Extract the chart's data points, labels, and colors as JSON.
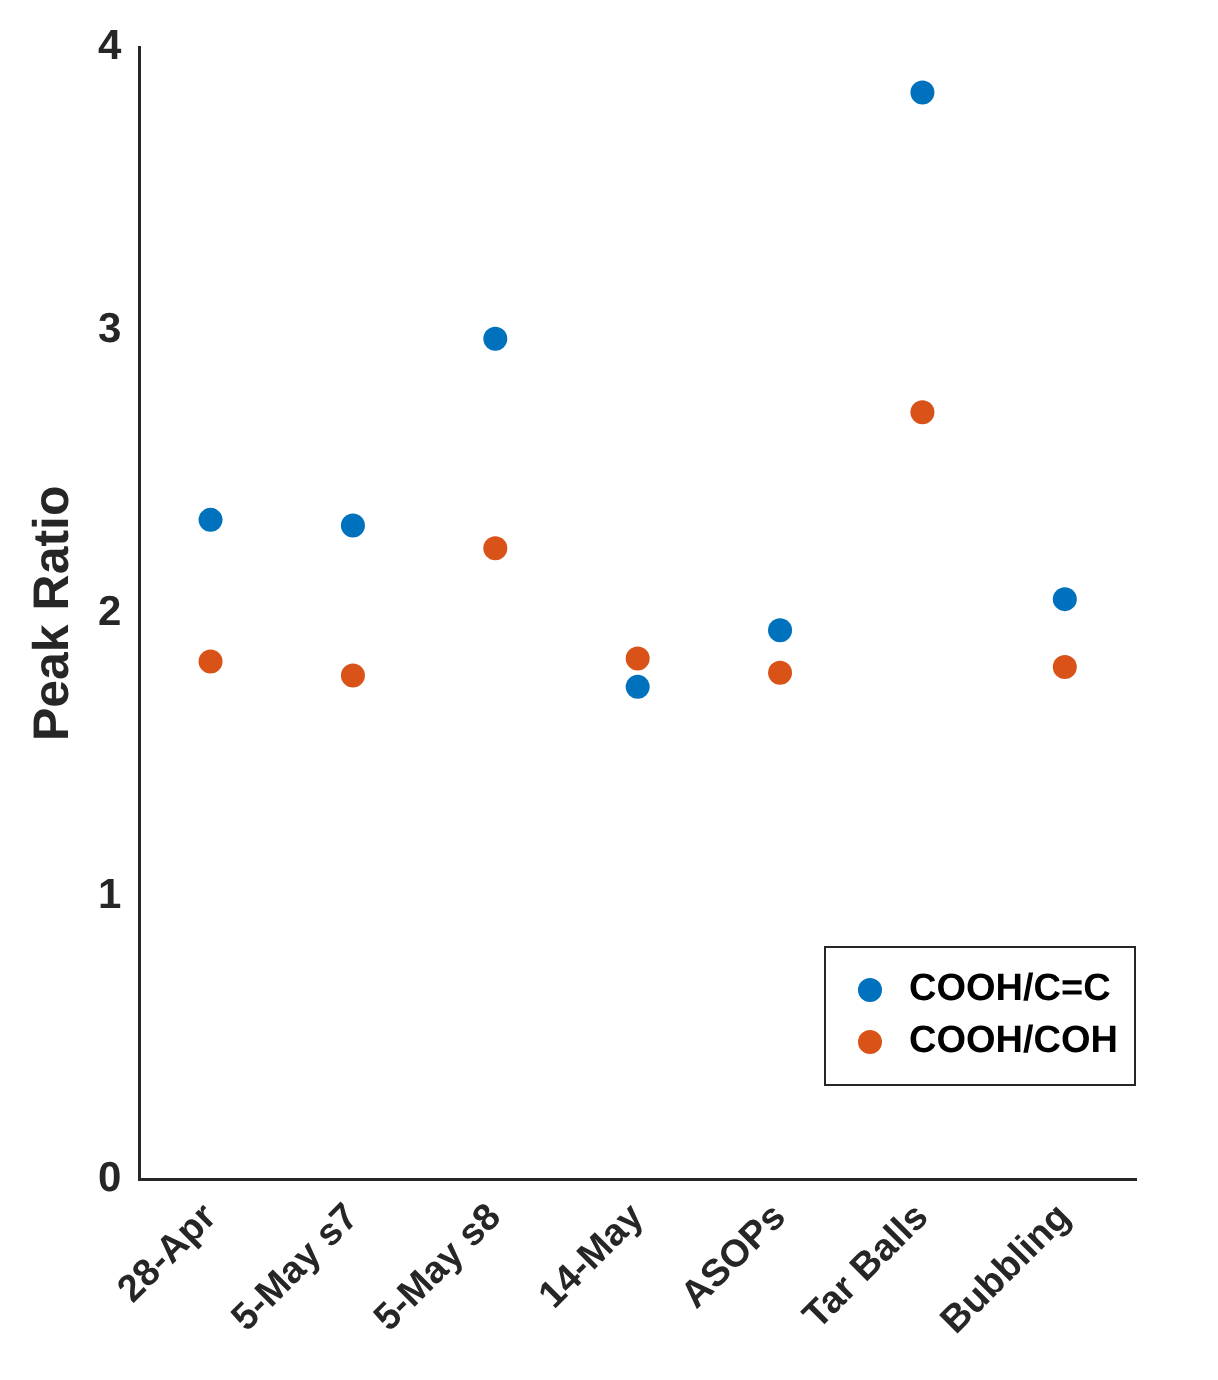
{
  "chart_data": {
    "type": "scatter",
    "ylabel": "Peak Ratio",
    "categories": [
      "28-Apr",
      "5-May s7",
      "5-May s8",
      "14-May",
      "ASOPs",
      "Tar Balls",
      "Bubbling"
    ],
    "series": [
      {
        "name": "COOH/C=C",
        "color": "#0072bd",
        "values": [
          2.33,
          2.31,
          2.97,
          1.74,
          1.94,
          3.84,
          2.05
        ]
      },
      {
        "name": "COOH/COH",
        "color": "#d95319",
        "values": [
          1.83,
          1.78,
          2.23,
          1.84,
          1.79,
          2.71,
          1.81
        ]
      }
    ],
    "ylim": [
      0,
      4
    ],
    "yticks": [
      0,
      1,
      2,
      3,
      4
    ],
    "grid": false,
    "legend": "bottom right",
    "marker": "circle"
  }
}
